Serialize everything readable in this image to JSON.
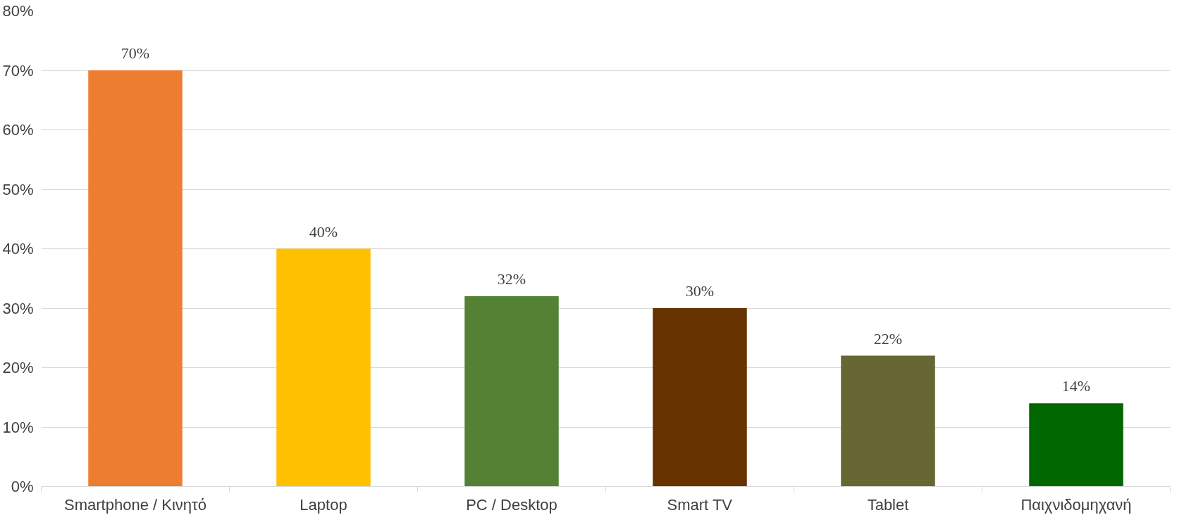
{
  "chart_data": {
    "type": "bar",
    "categories": [
      "Smartphone / Κινητό",
      "Laptop",
      "PC / Desktop",
      "Smart TV",
      "Tablet",
      "Παιχνιδομηχανή"
    ],
    "values": [
      70,
      40,
      32,
      30,
      22,
      14
    ],
    "colors": [
      "#ed7d31",
      "#ffc000",
      "#548235",
      "#663300",
      "#676733",
      "#006600"
    ],
    "value_labels": [
      "70%",
      "40%",
      "32%",
      "30%",
      "22%",
      "14%"
    ],
    "ylim": [
      0,
      80
    ],
    "yticks": [
      {
        "value": 0,
        "label": "0%"
      },
      {
        "value": 10,
        "label": "10%"
      },
      {
        "value": 20,
        "label": "20%"
      },
      {
        "value": 30,
        "label": "30%"
      },
      {
        "value": 40,
        "label": "40%"
      },
      {
        "value": 50,
        "label": "50%"
      },
      {
        "value": 60,
        "label": "60%"
      },
      {
        "value": 70,
        "label": "70%"
      },
      {
        "value": 80,
        "label": "80%"
      }
    ],
    "grid": "y"
  }
}
